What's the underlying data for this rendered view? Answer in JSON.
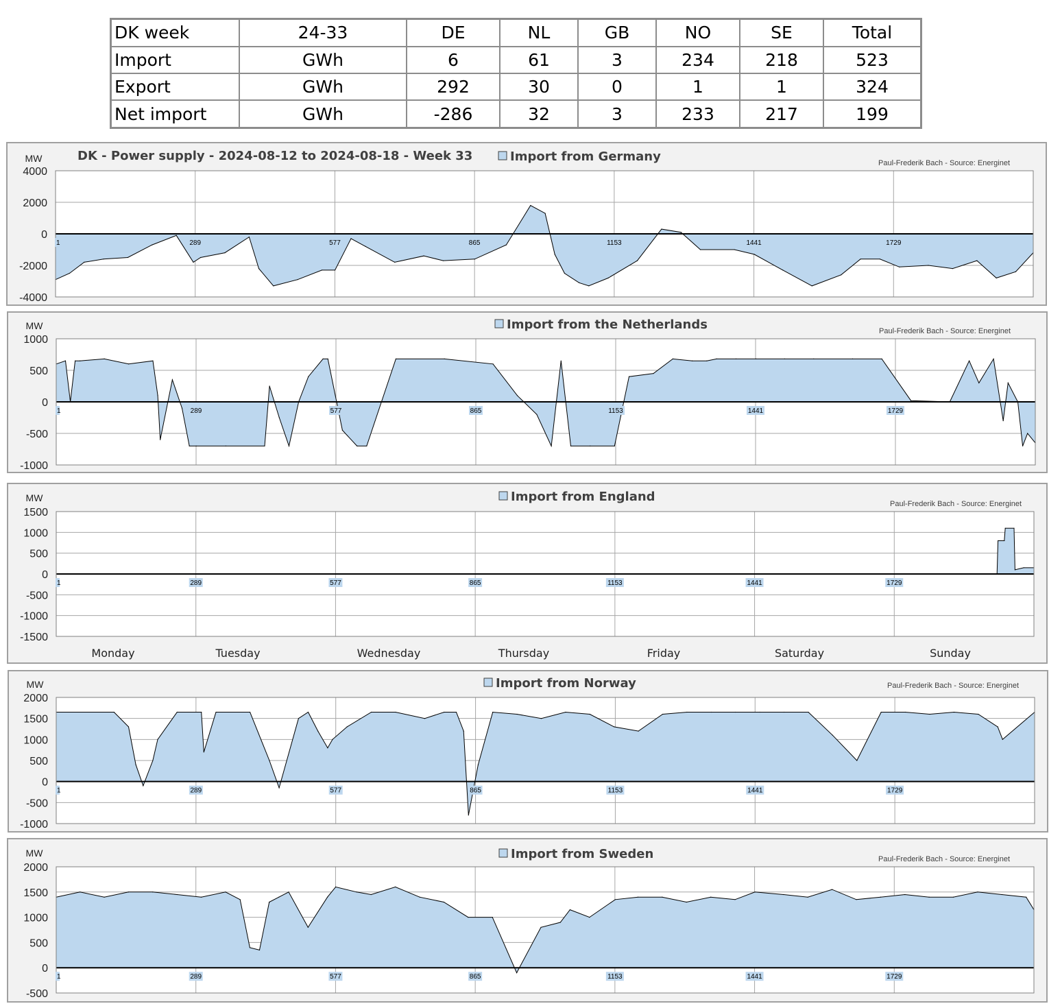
{
  "table": {
    "rows": [
      [
        "DK week",
        "24-33",
        "DE",
        "NL",
        "GB",
        "NO",
        "SE",
        "Total"
      ],
      [
        "Import",
        "GWh",
        "6",
        "61",
        "3",
        "234",
        "218",
        "523"
      ],
      [
        "Export",
        "GWh",
        "292",
        "30",
        "0",
        "1",
        "1",
        "324"
      ],
      [
        "Net import",
        "GWh",
        "-286",
        "32",
        "3",
        "233",
        "217",
        "199"
      ]
    ]
  },
  "colors": {
    "fill": "#bdd7ee",
    "line": "#000000",
    "grid": "#a6a6a6",
    "panel_bg": "#f2f2f2",
    "plot_bg": "#ffffff"
  },
  "day_labels": [
    "Monday",
    "Tuesday",
    "Wednesday",
    "Thursday",
    "Friday",
    "Saturday",
    "Sunday"
  ],
  "chart_data": [
    {
      "type": "area",
      "title": "DK - Power supply - 2024-08-12 to 2024-08-18 - Week 33",
      "legend": "Import from Germany",
      "credit": "Paul-Frederik Bach - Source: Energinet",
      "ylabel": "MW",
      "ylim": [
        -4000,
        4000
      ],
      "yticks": [
        "4000",
        "2000",
        "0",
        "-2000",
        "-4000"
      ],
      "xticks": [
        "1",
        "289",
        "577",
        "865",
        "1153",
        "1441",
        "1729"
      ],
      "xlim": [
        1,
        2016
      ],
      "x": [
        1,
        30,
        60,
        100,
        150,
        200,
        250,
        285,
        300,
        350,
        400,
        420,
        450,
        500,
        550,
        577,
        610,
        640,
        700,
        760,
        800,
        865,
        930,
        980,
        1010,
        1030,
        1050,
        1080,
        1100,
        1140,
        1200,
        1250,
        1290,
        1330,
        1400,
        1441,
        1500,
        1560,
        1620,
        1660,
        1700,
        1740,
        1800,
        1850,
        1900,
        1940,
        1980,
        2016
      ],
      "y": [
        -2900,
        -2500,
        -1800,
        -1600,
        -1500,
        -700,
        -100,
        -1800,
        -1500,
        -1200,
        -200,
        -2200,
        -3300,
        -2900,
        -2300,
        -2300,
        -300,
        -800,
        -1800,
        -1400,
        -1700,
        -1600,
        -700,
        1800,
        1300,
        -1300,
        -2500,
        -3100,
        -3300,
        -2800,
        -1700,
        300,
        100,
        -1000,
        -1000,
        -1300,
        -2300,
        -3300,
        -2600,
        -1600,
        -1600,
        -2100,
        -2000,
        -2200,
        -1700,
        -2800,
        -2400,
        -1200
      ]
    },
    {
      "type": "area",
      "legend": "Import from the Netherlands",
      "credit": "Paul-Frederik Bach - Source: Energinet",
      "ylabel": "MW",
      "ylim": [
        -1000,
        1000
      ],
      "yticks": [
        "1000",
        "500",
        "0",
        "-500",
        "-1000"
      ],
      "xticks": [
        "1",
        "289",
        "577",
        "865",
        "1153",
        "1441",
        "1729"
      ],
      "xlim": [
        1,
        2016
      ],
      "x": [
        1,
        20,
        30,
        40,
        50,
        100,
        150,
        200,
        210,
        215,
        240,
        260,
        275,
        289,
        350,
        430,
        440,
        460,
        480,
        500,
        520,
        550,
        560,
        590,
        620,
        640,
        700,
        800,
        900,
        950,
        990,
        1020,
        1040,
        1060,
        1100,
        1150,
        1180,
        1230,
        1270,
        1310,
        1340,
        1360,
        1400,
        1441,
        1500,
        1560,
        1640,
        1700,
        1760,
        1840,
        1880,
        1900,
        1930,
        1950,
        1960,
        1980,
        1990,
        2000,
        2016
      ],
      "y": [
        600,
        650,
        0,
        650,
        650,
        680,
        600,
        650,
        100,
        -600,
        350,
        -100,
        -700,
        -700,
        -700,
        -700,
        250,
        -250,
        -700,
        0,
        400,
        680,
        680,
        -450,
        -700,
        -700,
        680,
        680,
        600,
        100,
        -200,
        -700,
        650,
        -700,
        -700,
        -700,
        400,
        450,
        680,
        650,
        650,
        680,
        680,
        680,
        680,
        680,
        680,
        680,
        20,
        0,
        650,
        300,
        680,
        -300,
        300,
        0,
        -700,
        -500,
        -650
      ]
    },
    {
      "type": "area",
      "legend": "Import from England",
      "credit": "Paul-Frederik Bach - Source: Energinet",
      "ylabel": "MW",
      "ylim": [
        -1500,
        1500
      ],
      "yticks": [
        "1500",
        "1000",
        "500",
        "0",
        "-500",
        "-1000",
        "-1500"
      ],
      "xticks": [
        "1",
        "289",
        "577",
        "865",
        "1153",
        "1441",
        "1729"
      ],
      "xlim": [
        1,
        2016
      ],
      "x": [
        1,
        1940,
        1942,
        1955,
        1957,
        1975,
        1977,
        1995,
        2016
      ],
      "y": [
        0,
        0,
        800,
        800,
        1100,
        1100,
        100,
        150,
        150
      ]
    },
    {
      "type": "area",
      "legend": "Import from Norway",
      "credit": "Paul-Frederik Bach - Source: Energinet",
      "ylabel": "MW",
      "ylim": [
        -1000,
        2000
      ],
      "yticks": [
        "2000",
        "1500",
        "1000",
        "500",
        "0",
        "-500",
        "-1000"
      ],
      "xticks": [
        "1",
        "289",
        "577",
        "865",
        "1153",
        "1441",
        "1729"
      ],
      "xlim": [
        1,
        2016
      ],
      "x": [
        1,
        120,
        150,
        165,
        180,
        200,
        210,
        250,
        300,
        305,
        330,
        400,
        440,
        460,
        500,
        520,
        540,
        560,
        570,
        600,
        650,
        700,
        760,
        800,
        825,
        840,
        850,
        870,
        900,
        950,
        1000,
        1050,
        1100,
        1150,
        1200,
        1250,
        1300,
        1350,
        1400,
        1450,
        1500,
        1550,
        1600,
        1650,
        1700,
        1750,
        1800,
        1850,
        1900,
        1940,
        1950,
        2016
      ],
      "y": [
        1650,
        1650,
        1300,
        400,
        -100,
        500,
        1000,
        1650,
        1650,
        700,
        1650,
        1650,
        500,
        -150,
        1500,
        1650,
        1200,
        800,
        1000,
        1300,
        1650,
        1650,
        1500,
        1650,
        1650,
        1200,
        -800,
        400,
        1650,
        1600,
        1500,
        1650,
        1600,
        1300,
        1200,
        1600,
        1650,
        1650,
        1650,
        1650,
        1650,
        1650,
        1100,
        500,
        1650,
        1650,
        1600,
        1650,
        1600,
        1300,
        1000,
        1650
      ]
    },
    {
      "type": "area",
      "legend": "Import from Sweden",
      "credit": "Paul-Frederik Bach - Source: Energinet",
      "ylabel": "MW",
      "ylim": [
        -500,
        2000
      ],
      "yticks": [
        "2000",
        "1500",
        "1000",
        "500",
        "0",
        "-500"
      ],
      "xticks": [
        "1",
        "289",
        "577",
        "865",
        "1153",
        "1441",
        "1729"
      ],
      "xlim": [
        1,
        2016
      ],
      "x": [
        1,
        50,
        100,
        150,
        200,
        250,
        300,
        350,
        380,
        400,
        420,
        440,
        460,
        480,
        520,
        560,
        577,
        620,
        650,
        700,
        750,
        800,
        850,
        900,
        950,
        1000,
        1040,
        1060,
        1100,
        1153,
        1200,
        1250,
        1300,
        1350,
        1400,
        1441,
        1500,
        1550,
        1600,
        1650,
        1700,
        1750,
        1800,
        1850,
        1900,
        1950,
        2000,
        2016
      ],
      "y": [
        1400,
        1500,
        1400,
        1500,
        1500,
        1450,
        1400,
        1500,
        1350,
        400,
        350,
        1300,
        1400,
        1500,
        800,
        1400,
        1600,
        1500,
        1450,
        1600,
        1400,
        1300,
        1000,
        1000,
        -100,
        800,
        900,
        1150,
        1000,
        1350,
        1400,
        1400,
        1300,
        1400,
        1350,
        1500,
        1450,
        1400,
        1550,
        1350,
        1400,
        1450,
        1400,
        1400,
        1500,
        1450,
        1400,
        1150
      ]
    }
  ]
}
